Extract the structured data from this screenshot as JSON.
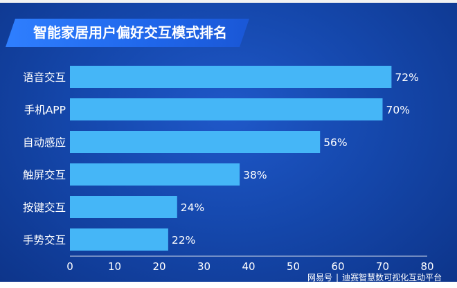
{
  "title": "智能家居用户偏好交互模式排名",
  "watermark": {
    "brand": "网易号",
    "source": "迪赛智慧数可视化互动平台"
  },
  "colors": {
    "bar": "#45b6f7",
    "title_bar": "#2f7fff",
    "background": "#1548ad"
  },
  "chart_data": {
    "type": "bar",
    "orientation": "horizontal",
    "title": "智能家居用户偏好交互模式排名",
    "categories": [
      "语音交互",
      "手机APP",
      "自动感应",
      "触屏交互",
      "按键交互",
      "手势交互"
    ],
    "values": [
      72,
      70,
      56,
      38,
      24,
      22
    ],
    "value_labels": [
      "72%",
      "70%",
      "56%",
      "38%",
      "24%",
      "22%"
    ],
    "xlim": [
      0,
      80
    ],
    "xticks": [
      0,
      10,
      20,
      30,
      40,
      50,
      60,
      70,
      80
    ],
    "xlabel": "",
    "ylabel": "",
    "grid": false,
    "legend": "none"
  }
}
